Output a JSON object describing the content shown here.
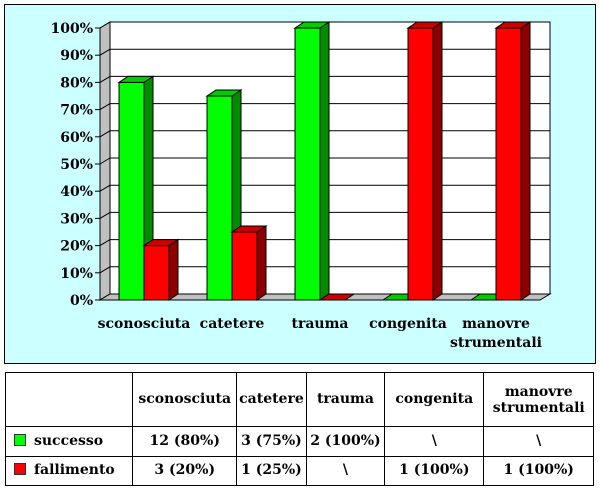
{
  "chart_data": {
    "type": "bar",
    "categories": [
      "sconosciuta",
      "catetere",
      "trauma",
      "congenita",
      "manovre strumentali"
    ],
    "series": [
      {
        "name": "successo",
        "values": [
          80,
          75,
          100,
          0,
          0
        ],
        "table_values": [
          "12 (80%)",
          "3 (75%)",
          "2 (100%)",
          "\\",
          "\\"
        ],
        "color": "#00ff00"
      },
      {
        "name": "fallimento",
        "values": [
          20,
          25,
          0,
          100,
          100
        ],
        "table_values": [
          "3 (20%)",
          "1 (25%)",
          "\\",
          "1 (100%)",
          "1 (100%)"
        ],
        "color": "#ff0000"
      }
    ],
    "ylim": [
      0,
      100
    ],
    "yticks": [
      "0%",
      "10%",
      "20%",
      "30%",
      "40%",
      "50%",
      "60%",
      "70%",
      "80%",
      "90%",
      "100%"
    ],
    "grid": true,
    "legend": "table-bottom",
    "plot_background": "#ccffff",
    "wall_color": "#c0c0c0"
  },
  "table": {
    "headers": [
      "sconosciuta",
      "catetere",
      "trauma",
      "congenita",
      "manovre strumentali"
    ]
  }
}
